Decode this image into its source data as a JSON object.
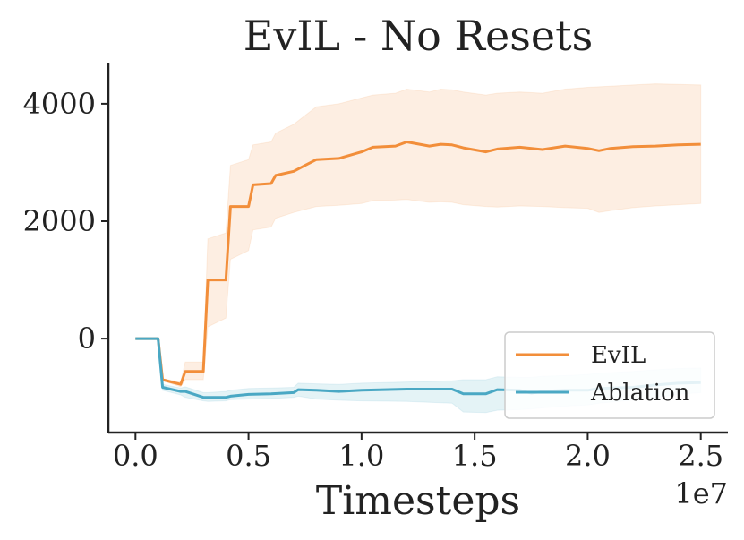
{
  "chart_data": {
    "type": "line",
    "title": "EvIL - No Resets",
    "xlabel": "Timesteps",
    "ylabel": "",
    "x_offset_label": "1e7",
    "xlim": [
      -0.12,
      2.62
    ],
    "ylim": [
      -1600,
      4700
    ],
    "xticks": [
      0.0,
      0.5,
      1.0,
      1.5,
      2.0,
      2.5
    ],
    "xtick_labels": [
      "0.0",
      "0.5",
      "1.0",
      "1.5",
      "2.0",
      "2.5"
    ],
    "yticks": [
      0,
      2000,
      4000
    ],
    "ytick_labels": [
      "0",
      "2000",
      "4000"
    ],
    "grid": false,
    "legend_position": "lower-right",
    "series": [
      {
        "name": "EvIL",
        "color": "#f28e3a",
        "fill_color": "#fdebdd",
        "x": [
          0.0,
          0.1,
          0.12,
          0.2,
          0.22,
          0.3,
          0.32,
          0.4,
          0.42,
          0.5,
          0.52,
          0.6,
          0.62,
          0.7,
          0.75,
          0.8,
          0.9,
          1.0,
          1.05,
          1.15,
          1.2,
          1.3,
          1.35,
          1.4,
          1.45,
          1.55,
          1.6,
          1.7,
          1.8,
          1.9,
          2.0,
          2.05,
          2.1,
          2.2,
          2.3,
          2.4,
          2.5
        ],
        "y": [
          0,
          0,
          -700,
          -780,
          -560,
          -560,
          1000,
          1000,
          2250,
          2250,
          2620,
          2640,
          2780,
          2850,
          2950,
          3050,
          3070,
          3180,
          3260,
          3280,
          3350,
          3280,
          3310,
          3300,
          3250,
          3180,
          3230,
          3260,
          3220,
          3280,
          3240,
          3200,
          3240,
          3270,
          3280,
          3300,
          3310
        ],
        "lower": [
          0,
          0,
          -720,
          -820,
          -700,
          -700,
          200,
          350,
          1350,
          1500,
          1850,
          1900,
          2050,
          2150,
          2200,
          2250,
          2270,
          2300,
          2350,
          2360,
          2370,
          2320,
          2330,
          2320,
          2280,
          2250,
          2240,
          2260,
          2250,
          2230,
          2220,
          2150,
          2180,
          2230,
          2260,
          2280,
          2300
        ],
        "upper": [
          0,
          0,
          -680,
          -740,
          -400,
          -400,
          1700,
          1800,
          2950,
          3050,
          3300,
          3350,
          3500,
          3650,
          3800,
          3950,
          4000,
          4100,
          4150,
          4180,
          4250,
          4200,
          4250,
          4240,
          4200,
          4150,
          4180,
          4200,
          4180,
          4250,
          4280,
          4290,
          4300,
          4320,
          4340,
          4330,
          4320
        ]
      },
      {
        "name": "Ablation",
        "color": "#4aa8c4",
        "fill_color": "#dff1f4",
        "x": [
          0.0,
          0.1,
          0.12,
          0.2,
          0.22,
          0.3,
          0.32,
          0.4,
          0.42,
          0.5,
          0.6,
          0.7,
          0.72,
          0.8,
          0.9,
          1.0,
          1.2,
          1.4,
          1.45,
          1.55,
          1.6,
          1.7,
          1.75,
          1.8,
          1.9,
          2.0,
          2.05,
          2.2,
          2.3,
          2.4,
          2.5
        ],
        "y": [
          0,
          0,
          -830,
          -900,
          -900,
          -1000,
          -1000,
          -1000,
          -980,
          -950,
          -940,
          -920,
          -870,
          -880,
          -900,
          -880,
          -860,
          -860,
          -940,
          -940,
          -870,
          -880,
          -930,
          -900,
          -880,
          -880,
          -850,
          -830,
          -790,
          -760,
          -750
        ],
        "lower": [
          0,
          0,
          -880,
          -960,
          -1000,
          -1060,
          -1070,
          -1060,
          -1040,
          -1030,
          -1020,
          -1000,
          -980,
          -1030,
          -1050,
          -1060,
          -1070,
          -1100,
          -1250,
          -1260,
          -1220,
          -1210,
          -1200,
          -1180,
          -1150,
          -1130,
          -1100,
          -1050,
          -1000,
          -950,
          -920
        ],
        "upper": [
          0,
          0,
          -780,
          -840,
          -820,
          -920,
          -920,
          -900,
          -880,
          -850,
          -840,
          -830,
          -760,
          -770,
          -780,
          -760,
          -740,
          -720,
          -700,
          -700,
          -650,
          -660,
          -660,
          -640,
          -630,
          -610,
          -590,
          -560,
          -530,
          -510,
          -500
        ]
      }
    ]
  }
}
